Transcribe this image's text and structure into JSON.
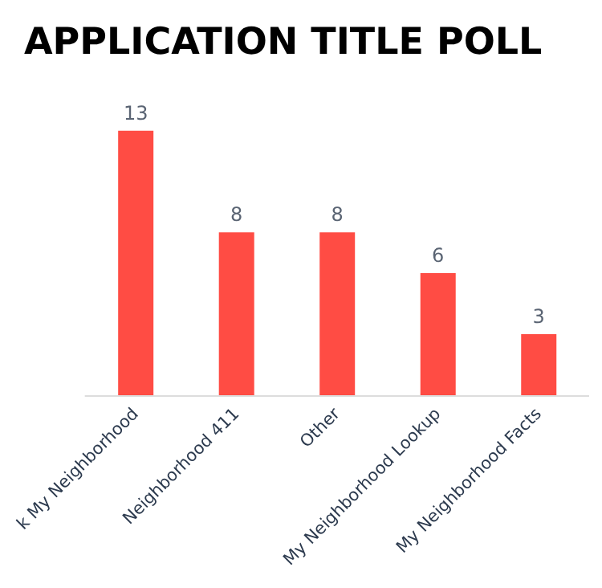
{
  "chart_data": {
    "type": "bar",
    "title": "APPLICATION TITLE POLL",
    "categories": [
      "k My Neighborhood",
      "Neighborhood 411",
      "Other",
      "My Neighborhood Lookup",
      "My Neighborhood Facts"
    ],
    "values": [
      13,
      8,
      8,
      6,
      3
    ],
    "color": "#ff4c44",
    "data_labels": true,
    "tick_labels": "x"
  }
}
